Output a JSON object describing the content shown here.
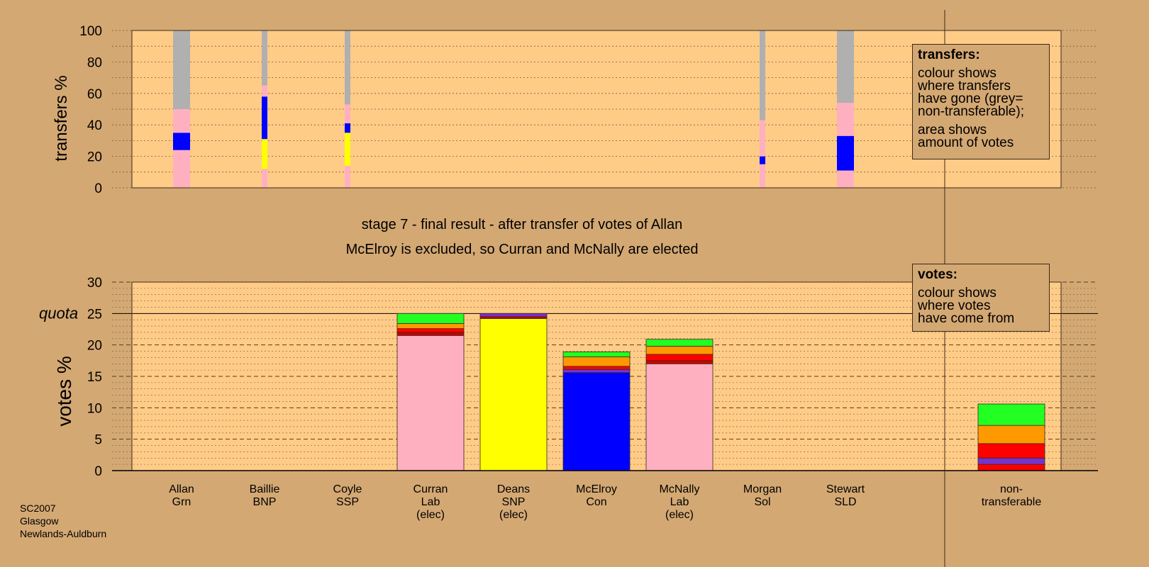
{
  "title_lines": [
    "stage 7 - final result - after transfer of votes of Allan",
    "McElroy is excluded, so Curran and McNally are elected"
  ],
  "source_lines": [
    "SC2007",
    "Glasgow",
    "Newlands-Auldburn"
  ],
  "transfers_legend": {
    "title": "transfers:",
    "lines": [
      "colour shows",
      "where transfers",
      "have gone (grey=",
      "non-transferable);"
    ],
    "lines2": [
      "area shows",
      "amount of votes"
    ]
  },
  "votes_legend": {
    "title": "votes:",
    "lines": [
      "colour shows",
      "where votes",
      "have come from"
    ]
  },
  "colors": {
    "background": "#D4A873",
    "plot_bg": "#FFCC88",
    "Lab": "#FFB0C0",
    "SNP": "#FFFF00",
    "Con": "#0000FF",
    "Grn": "#22FF22",
    "SSP": "#FF0000",
    "BNP": "#8B008B",
    "SLD": "#FF9900",
    "Sol": "#CC0000",
    "Sol_alt": "#7733CC",
    "nontransferable": "#B0B0B0"
  },
  "chart_data": [
    {
      "type": "bar",
      "name": "transfers",
      "ylabel": "transfers %",
      "ylim": [
        0,
        100
      ],
      "yticks": [
        0,
        20,
        40,
        60,
        80,
        100
      ],
      "grid": true,
      "categories": [
        "Allan",
        "Baillie",
        "Coyle",
        "Curran",
        "Deans",
        "McElroy",
        "McNally",
        "Morgan",
        "Stewart"
      ],
      "stacks": [
        [
          {
            "color": "Lab",
            "value": 24
          },
          {
            "color": "Con",
            "value": 11
          },
          {
            "color": "Lab",
            "value": 15
          },
          {
            "color": "nontransferable",
            "value": 50
          }
        ],
        [
          {
            "color": "Lab",
            "value": 12
          },
          {
            "color": "SNP",
            "value": 19
          },
          {
            "color": "Con",
            "value": 27
          },
          {
            "color": "Lab",
            "value": 7
          },
          {
            "color": "nontransferable",
            "value": 35
          }
        ],
        [
          {
            "color": "Lab",
            "value": 14
          },
          {
            "color": "SNP",
            "value": 21
          },
          {
            "color": "Con",
            "value": 6
          },
          {
            "color": "Lab",
            "value": 12
          },
          {
            "color": "nontransferable",
            "value": 47
          }
        ],
        [],
        [],
        [],
        [],
        [
          {
            "color": "Lab",
            "value": 15
          },
          {
            "color": "Con",
            "value": 5
          },
          {
            "color": "Lab",
            "value": 23
          },
          {
            "color": "nontransferable",
            "value": 57
          }
        ],
        [
          {
            "color": "Lab",
            "value": 11
          },
          {
            "color": "Con",
            "value": 22
          },
          {
            "color": "Lab",
            "value": 21
          },
          {
            "color": "nontransferable",
            "value": 46
          }
        ]
      ]
    },
    {
      "type": "bar",
      "name": "votes",
      "ylabel": "votes %",
      "ylim": [
        0,
        30
      ],
      "yticks": [
        0,
        5,
        10,
        15,
        20,
        25,
        30
      ],
      "quota": 25,
      "quota_label": "quota",
      "grid": true,
      "categories": [
        [
          "Allan",
          "Grn"
        ],
        [
          "Baillie",
          "BNP"
        ],
        [
          "Coyle",
          "SSP"
        ],
        [
          "Curran",
          "Lab",
          "(elec)"
        ],
        [
          "Deans",
          "SNP",
          "(elec)"
        ],
        [
          "McElroy",
          "Con"
        ],
        [
          "McNally",
          "Lab",
          "(elec)"
        ],
        [
          "Morgan",
          "Sol"
        ],
        [
          "Stewart",
          "SLD"
        ],
        [
          "non-",
          "transferable"
        ]
      ],
      "stacks": [
        [],
        [],
        [],
        [
          {
            "color": "Lab",
            "value": 21.5
          },
          {
            "color": "Sol",
            "value": 0.5
          },
          {
            "color": "SSP",
            "value": 0.6
          },
          {
            "color": "SLD",
            "value": 0.8
          },
          {
            "color": "Grn",
            "value": 1.6
          }
        ],
        [
          {
            "color": "SNP",
            "value": 24.2
          },
          {
            "color": "Sol",
            "value": 0.3
          },
          {
            "color": "Sol_alt",
            "value": 0.5
          }
        ],
        [
          {
            "color": "Con",
            "value": 15.6
          },
          {
            "color": "Sol_alt",
            "value": 0.5
          },
          {
            "color": "SSP",
            "value": 0.5
          },
          {
            "color": "SLD",
            "value": 1.5
          },
          {
            "color": "Grn",
            "value": 0.8
          }
        ],
        [
          {
            "color": "Lab",
            "value": 17.0
          },
          {
            "color": "Sol",
            "value": 0.5
          },
          {
            "color": "SSP",
            "value": 1.0
          },
          {
            "color": "SLD",
            "value": 1.3
          },
          {
            "color": "Grn",
            "value": 1.1
          }
        ],
        [],
        [],
        [
          {
            "color": "SSP",
            "value": 1.0
          },
          {
            "color": "Sol_alt",
            "value": 1.0
          },
          {
            "color": "SSP",
            "value": 2.3
          },
          {
            "color": "SLD",
            "value": 2.9
          },
          {
            "color": "Grn",
            "value": 3.4
          }
        ]
      ]
    }
  ]
}
